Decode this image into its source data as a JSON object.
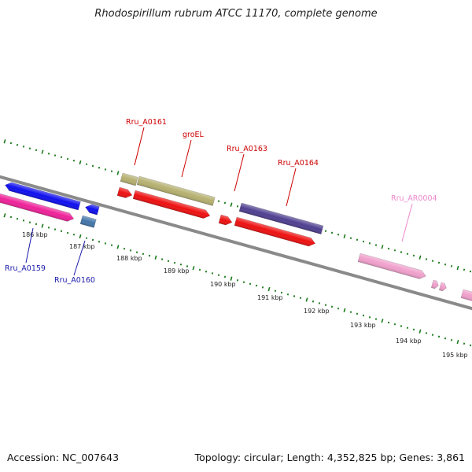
{
  "title": "Rhodospirillum rubrum ATCC 11170, complete genome",
  "footer": {
    "accession": "Accession: NC_007643",
    "summary": "Topology: circular; Length: 4,352,825 bp; Genes: 3,861"
  },
  "colors": {
    "backbone": "#888888",
    "tick_green": "#1a7a1a",
    "label_red": "#cc0000",
    "label_blue": "#1a1aaa",
    "label_pink": "#ee88cc",
    "gene_blue": "#1010ee",
    "gene_magenta": "#ee2299",
    "gene_steel": "#4477aa",
    "gene_khaki": "#b5b070",
    "gene_red": "#ee1111",
    "gene_purple": "#504090",
    "gene_pink": "#f0a0cc"
  },
  "scale_labels": [
    "186 kbp",
    "187 kbp",
    "188 kbp",
    "189 kbp",
    "190 kbp",
    "191 kbp",
    "192 kbp",
    "193 kbp",
    "194 kbp",
    "195 kbp"
  ],
  "gene_labels": {
    "rru_a0161": "Rru_A0161",
    "groel": "groEL",
    "rru_a0163": "Rru_A0163",
    "rru_a0164": "Rru_A0164",
    "rru_ar0004": "Rru_AR0004",
    "rru_a0159": "Rru_A0159",
    "rru_a0160": "Rru_A0160"
  }
}
